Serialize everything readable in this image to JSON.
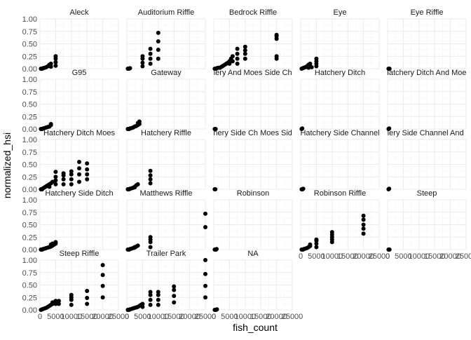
{
  "chart_data": {
    "type": "scatter",
    "layout": "faceted-grid",
    "xlabel": "fish_count",
    "ylabel": "normalized_hsi",
    "xlim": [
      0,
      25000
    ],
    "ylim": [
      0,
      1
    ],
    "x_ticks": [
      0,
      5000,
      10000,
      15000,
      20000,
      25000
    ],
    "x_tick_labels": [
      "0",
      "5000",
      "10000",
      "15000",
      "20000",
      "25000"
    ],
    "y_ticks": [
      0,
      0.25,
      0.5,
      0.75,
      1.0
    ],
    "y_tick_labels": [
      "0.00",
      "0.25",
      "0.50",
      "0.75",
      "1.00"
    ],
    "grid": true,
    "point_color": "#000000",
    "panel_background": "#ffffff",
    "grid_color": "#ebebeb",
    "facets": [
      {
        "name": "Aleck",
        "points": [
          [
            300,
            0
          ],
          [
            700,
            0
          ],
          [
            1000,
            0.01
          ],
          [
            1500,
            0.02
          ],
          [
            2000,
            0.03
          ],
          [
            2500,
            0.05
          ],
          [
            3000,
            0.08
          ],
          [
            3500,
            0.1
          ],
          [
            3500,
            0.04
          ],
          [
            5000,
            0.06
          ],
          [
            5000,
            0.13
          ],
          [
            5000,
            0.2
          ],
          [
            5000,
            0.25
          ]
        ]
      },
      {
        "name": "Auditorium Riffle",
        "points": [
          [
            300,
            0
          ],
          [
            700,
            0
          ],
          [
            1000,
            0.01
          ],
          [
            5000,
            0.05
          ],
          [
            5000,
            0.12
          ],
          [
            5000,
            0.2
          ],
          [
            5000,
            0.25
          ],
          [
            7500,
            0.1
          ],
          [
            7500,
            0.2
          ],
          [
            7500,
            0.3
          ],
          [
            7500,
            0.4
          ],
          [
            10000,
            0.2
          ],
          [
            10000,
            0.38
          ],
          [
            10000,
            0.55
          ],
          [
            10000,
            0.72
          ]
        ]
      },
      {
        "name": "Bedrock Riffle",
        "points": [
          [
            300,
            0
          ],
          [
            700,
            0
          ],
          [
            1000,
            0.01
          ],
          [
            1500,
            0.02
          ],
          [
            2000,
            0.02
          ],
          [
            2500,
            0.04
          ],
          [
            3000,
            0.06
          ],
          [
            3500,
            0.08
          ],
          [
            4000,
            0.1
          ],
          [
            4500,
            0.12
          ],
          [
            5000,
            0.15
          ],
          [
            5000,
            0.1
          ],
          [
            5500,
            0.2
          ],
          [
            6000,
            0.25
          ],
          [
            6000,
            0.15
          ],
          [
            7500,
            0.2
          ],
          [
            7500,
            0.3
          ],
          [
            7500,
            0.4
          ],
          [
            7500,
            0.1
          ],
          [
            10000,
            0.2
          ],
          [
            10000,
            0.3
          ],
          [
            10000,
            0.37
          ],
          [
            10000,
            0.44
          ],
          [
            20000,
            0.2
          ],
          [
            20000,
            0.25
          ],
          [
            20000,
            0.6
          ],
          [
            20000,
            0.65
          ],
          [
            20000,
            0.68
          ]
        ]
      },
      {
        "name": "Eye",
        "points": [
          [
            300,
            0
          ],
          [
            700,
            0.01
          ],
          [
            1000,
            0.02
          ],
          [
            1500,
            0.03
          ],
          [
            2000,
            0.05
          ],
          [
            2500,
            0.08
          ],
          [
            2500,
            0.02
          ],
          [
            3000,
            0.1
          ],
          [
            3500,
            0.03
          ],
          [
            5000,
            0.05
          ],
          [
            5000,
            0.1
          ],
          [
            5000,
            0.15
          ],
          [
            5000,
            0.2
          ]
        ]
      },
      {
        "name": "Eye Riffle",
        "points": [
          [
            300,
            0
          ],
          [
            600,
            0
          ]
        ]
      },
      {
        "name": "G95",
        "points": [
          [
            300,
            0
          ],
          [
            700,
            0
          ],
          [
            1000,
            0.01
          ],
          [
            1500,
            0.02
          ],
          [
            2000,
            0.03
          ],
          [
            2500,
            0.04
          ],
          [
            3000,
            0.05
          ],
          [
            3500,
            0.08
          ],
          [
            3500,
            0.1
          ]
        ]
      },
      {
        "name": "Gateway",
        "points": [
          [
            300,
            0
          ],
          [
            700,
            0
          ],
          [
            1000,
            0.01
          ],
          [
            1500,
            0.02
          ],
          [
            2000,
            0.03
          ],
          [
            2500,
            0.05
          ],
          [
            3000,
            0.06
          ],
          [
            3500,
            0.08
          ],
          [
            3500,
            0.12
          ],
          [
            4000,
            0.1
          ],
          [
            4000,
            0.15
          ]
        ]
      },
      {
        "name": "Hatchery And Moes Side Channel",
        "points": [
          [
            300,
            0
          ],
          [
            600,
            0
          ]
        ]
      },
      {
        "name": "Hatchery Ditch",
        "points": [
          [
            300,
            0
          ],
          [
            500,
            0.01
          ]
        ]
      },
      {
        "name": "Hatchery Ditch And Moes",
        "points": [
          [
            300,
            0
          ],
          [
            500,
            0.01
          ]
        ]
      },
      {
        "name": "Hatchery Ditch Moes",
        "points": [
          [
            300,
            0
          ],
          [
            700,
            0
          ],
          [
            1000,
            0.02
          ],
          [
            1500,
            0.04
          ],
          [
            2000,
            0.06
          ],
          [
            2500,
            0.08
          ],
          [
            3000,
            0.05
          ],
          [
            3000,
            0.1
          ],
          [
            3500,
            0.12
          ],
          [
            4000,
            0.15
          ],
          [
            5000,
            0.1
          ],
          [
            5000,
            0.18
          ],
          [
            5000,
            0.25
          ],
          [
            5000,
            0.35
          ],
          [
            7500,
            0.1
          ],
          [
            7500,
            0.2
          ],
          [
            7500,
            0.28
          ],
          [
            7500,
            0.32
          ],
          [
            10000,
            0.1
          ],
          [
            10000,
            0.2
          ],
          [
            10000,
            0.3
          ],
          [
            10000,
            0.36
          ],
          [
            12500,
            0.15
          ],
          [
            12500,
            0.3
          ],
          [
            12500,
            0.42
          ],
          [
            12500,
            0.55
          ],
          [
            15000,
            0.2
          ],
          [
            15000,
            0.3
          ],
          [
            15000,
            0.4
          ],
          [
            15000,
            0.52
          ]
        ]
      },
      {
        "name": "Hatchery Riffle",
        "points": [
          [
            300,
            0
          ],
          [
            700,
            0
          ],
          [
            1000,
            0.01
          ],
          [
            1500,
            0.02
          ],
          [
            2000,
            0.03
          ],
          [
            2500,
            0.04
          ],
          [
            2500,
            0.05
          ],
          [
            3000,
            0.08
          ],
          [
            3500,
            0.1
          ],
          [
            7500,
            0.12
          ],
          [
            7500,
            0.2
          ],
          [
            7500,
            0.28
          ],
          [
            7500,
            0.37
          ]
        ]
      },
      {
        "name": "Hatchery Side Ch Moes Side Ch",
        "points": [
          [
            300,
            0
          ],
          [
            500,
            0
          ]
        ]
      },
      {
        "name": "Hatchery Side Channel",
        "points": [
          [
            300,
            0
          ],
          [
            600,
            0
          ],
          [
            800,
            0.01
          ]
        ]
      },
      {
        "name": "Hatchery Side Channel And Moes",
        "points": [
          [
            300,
            0
          ],
          [
            500,
            0.01
          ]
        ]
      },
      {
        "name": "Hatchery Side Ditch",
        "points": [
          [
            300,
            0
          ],
          [
            700,
            0
          ],
          [
            1000,
            0.01
          ],
          [
            1500,
            0.02
          ],
          [
            2000,
            0.03
          ],
          [
            2500,
            0.04
          ],
          [
            3000,
            0.05
          ],
          [
            3500,
            0.06
          ],
          [
            3500,
            0.1
          ],
          [
            4000,
            0.08
          ],
          [
            4000,
            0.12
          ],
          [
            4500,
            0.1
          ],
          [
            5000,
            0.12
          ],
          [
            5000,
            0.15
          ]
        ]
      },
      {
        "name": "Matthews Riffle",
        "points": [
          [
            300,
            0
          ],
          [
            700,
            0
          ],
          [
            1000,
            0.01
          ],
          [
            1500,
            0.02
          ],
          [
            2000,
            0.03
          ],
          [
            2500,
            0.04
          ],
          [
            2500,
            0.05
          ],
          [
            3000,
            0.06
          ],
          [
            3500,
            0.08
          ],
          [
            7500,
            0.05
          ],
          [
            7500,
            0.15
          ],
          [
            7500,
            0.2
          ],
          [
            7500,
            0.25
          ],
          [
            25000,
            0.45
          ],
          [
            25000,
            0.72
          ]
        ]
      },
      {
        "name": "Robinson",
        "points": [
          [
            300,
            0
          ],
          [
            700,
            0
          ],
          [
            900,
            0.01
          ]
        ]
      },
      {
        "name": "Robinson Riffle",
        "points": [
          [
            300,
            0
          ],
          [
            700,
            0
          ],
          [
            1000,
            0.01
          ],
          [
            1500,
            0.02
          ],
          [
            2000,
            0.03
          ],
          [
            2500,
            0.05
          ],
          [
            3000,
            0.07
          ],
          [
            3000,
            0.1
          ],
          [
            5000,
            0.05
          ],
          [
            5000,
            0.12
          ],
          [
            5000,
            0.18
          ],
          [
            5000,
            0.2
          ],
          [
            10000,
            0.15
          ],
          [
            10000,
            0.2
          ],
          [
            10000,
            0.25
          ],
          [
            10000,
            0.3
          ],
          [
            10000,
            0.35
          ],
          [
            20000,
            0.32
          ],
          [
            20000,
            0.42
          ],
          [
            20000,
            0.5
          ],
          [
            20000,
            0.6
          ],
          [
            20000,
            0.68
          ]
        ]
      },
      {
        "name": "Steep",
        "points": [
          [
            300,
            0
          ],
          [
            600,
            0
          ]
        ]
      },
      {
        "name": "Steep Riffle",
        "points": [
          [
            300,
            0
          ],
          [
            700,
            0.01
          ],
          [
            1000,
            0.02
          ],
          [
            1500,
            0.03
          ],
          [
            2000,
            0.04
          ],
          [
            2500,
            0.06
          ],
          [
            3000,
            0.08
          ],
          [
            3500,
            0.1
          ],
          [
            4000,
            0.12
          ],
          [
            4000,
            0.15
          ],
          [
            4500,
            0.15
          ],
          [
            5000,
            0.18
          ],
          [
            5000,
            0.12
          ],
          [
            5500,
            0.15
          ],
          [
            6000,
            0.18
          ],
          [
            6000,
            0.12
          ],
          [
            10000,
            0.1
          ],
          [
            10000,
            0.2
          ],
          [
            10000,
            0.25
          ],
          [
            10000,
            0.3
          ],
          [
            15000,
            0.12
          ],
          [
            15000,
            0.24
          ],
          [
            15000,
            0.38
          ],
          [
            20000,
            0.25
          ],
          [
            20000,
            0.48
          ],
          [
            20000,
            0.7
          ],
          [
            20000,
            0.9
          ]
        ]
      },
      {
        "name": "Trailer Park",
        "points": [
          [
            300,
            0
          ],
          [
            700,
            0
          ],
          [
            1000,
            0.01
          ],
          [
            1500,
            0.02
          ],
          [
            2000,
            0.03
          ],
          [
            2500,
            0.04
          ],
          [
            3000,
            0.05
          ],
          [
            3500,
            0.06
          ],
          [
            4000,
            0.08
          ],
          [
            4500,
            0.1
          ],
          [
            5000,
            0.12
          ],
          [
            5000,
            0.06
          ],
          [
            7500,
            0.1
          ],
          [
            7500,
            0.2
          ],
          [
            7500,
            0.3
          ],
          [
            7500,
            0.36
          ],
          [
            10000,
            0.1
          ],
          [
            10000,
            0.2
          ],
          [
            10000,
            0.3
          ],
          [
            10000,
            0.36
          ],
          [
            15000,
            0.15
          ],
          [
            15000,
            0.28
          ],
          [
            15000,
            0.4
          ],
          [
            15000,
            0.47
          ],
          [
            25000,
            0.25
          ],
          [
            25000,
            0.48
          ],
          [
            25000,
            0.72
          ],
          [
            25000,
            1.0
          ]
        ]
      },
      {
        "name": "NA",
        "points": [
          [
            300,
            0
          ],
          [
            700,
            0
          ],
          [
            1000,
            0.01
          ]
        ]
      }
    ]
  }
}
